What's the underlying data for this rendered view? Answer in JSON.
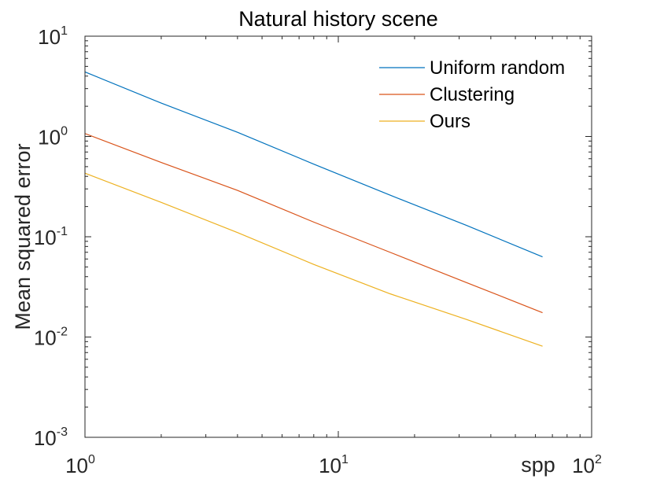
{
  "chart_data": {
    "type": "line",
    "title": "Natural history scene",
    "xlabel": "spp",
    "ylabel": "Mean squared error",
    "xscale": "log",
    "yscale": "log",
    "xlim": [
      1,
      100
    ],
    "ylim": [
      0.001,
      10
    ],
    "x_ticks": [
      {
        "base": "10",
        "exp": "0",
        "value": 1
      },
      {
        "base": "10",
        "exp": "1",
        "value": 10
      },
      {
        "base": "10",
        "exp": "2",
        "value": 100
      }
    ],
    "y_ticks": [
      {
        "base": "10",
        "exp": "-3",
        "value": 0.001
      },
      {
        "base": "10",
        "exp": "-2",
        "value": 0.01
      },
      {
        "base": "10",
        "exp": "-1",
        "value": 0.1
      },
      {
        "base": "10",
        "exp": "0",
        "value": 1
      },
      {
        "base": "10",
        "exp": "1",
        "value": 10
      }
    ],
    "x": [
      1,
      2,
      4,
      8,
      16,
      32,
      64
    ],
    "series": [
      {
        "name": "Uniform random",
        "color": "#0072bd",
        "values": [
          4.4,
          2.15,
          1.1,
          0.53,
          0.26,
          0.13,
          0.063
        ]
      },
      {
        "name": "Clustering",
        "color": "#d95319",
        "values": [
          1.07,
          0.55,
          0.29,
          0.14,
          0.07,
          0.035,
          0.0175
        ]
      },
      {
        "name": "Ours",
        "color": "#edb120",
        "values": [
          0.43,
          0.22,
          0.11,
          0.053,
          0.027,
          0.015,
          0.0081
        ]
      }
    ],
    "legend": "top-right",
    "grid": false
  }
}
